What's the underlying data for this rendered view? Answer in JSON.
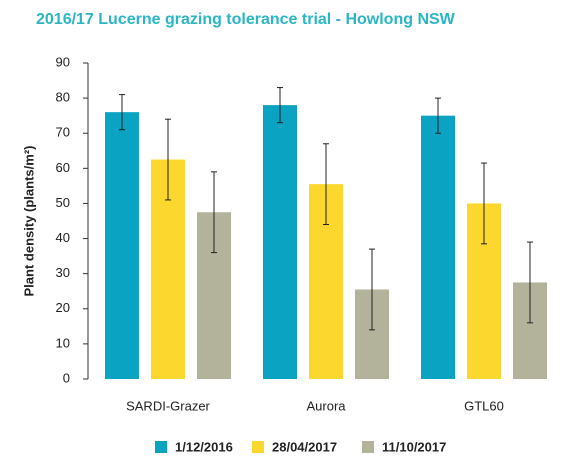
{
  "chart_data": {
    "type": "bar",
    "title": "2016/17 Lucerne grazing tolerance trial - Howlong NSW",
    "y_label": "Plant density (plants/m²)",
    "categories": [
      "SARDI-Grazer",
      "Aurora",
      "GTL60"
    ],
    "series": [
      {
        "name": "1/12/2016",
        "color": "#0aa3c2",
        "values": [
          76,
          78,
          75
        ],
        "errors": [
          5,
          5,
          5
        ]
      },
      {
        "name": "28/04/2017",
        "color": "#fcd82f",
        "values": [
          62.5,
          55.5,
          50
        ],
        "errors": [
          11.5,
          11.5,
          11.5
        ]
      },
      {
        "name": "11/10/2017",
        "color": "#b3b39b",
        "values": [
          47.5,
          25.5,
          27.5
        ],
        "errors": [
          11.5,
          11.5,
          11.5
        ]
      }
    ],
    "ylim": [
      0,
      90
    ],
    "yticks": [
      0,
      10,
      20,
      30,
      40,
      50,
      60,
      70,
      80,
      90
    ]
  }
}
